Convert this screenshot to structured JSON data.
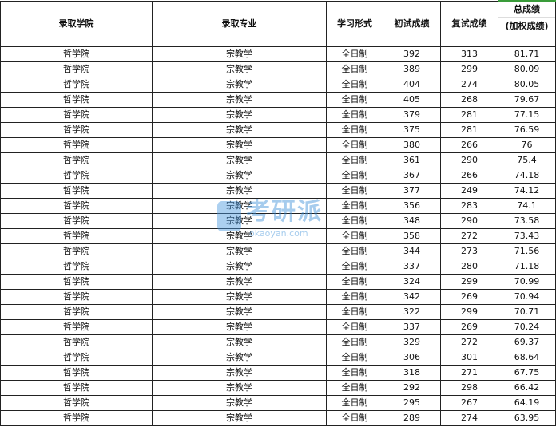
{
  "headers": [
    "录取学院",
    "录取专业",
    "学习形式",
    "初试成绩",
    "复试成绩"
  ],
  "total_header": {
    "line1": "总成绩",
    "line2": "(加权成绩)"
  },
  "watermark": {
    "logo": "考研派",
    "url": "okaoyan.com"
  },
  "rows": [
    [
      "哲学院",
      "宗教学",
      "全日制",
      "392",
      "313",
      "81.71"
    ],
    [
      "哲学院",
      "宗教学",
      "全日制",
      "389",
      "299",
      "80.09"
    ],
    [
      "哲学院",
      "宗教学",
      "全日制",
      "404",
      "274",
      "80.05"
    ],
    [
      "哲学院",
      "宗教学",
      "全日制",
      "405",
      "268",
      "79.67"
    ],
    [
      "哲学院",
      "宗教学",
      "全日制",
      "379",
      "281",
      "77.15"
    ],
    [
      "哲学院",
      "宗教学",
      "全日制",
      "375",
      "281",
      "76.59"
    ],
    [
      "哲学院",
      "宗教学",
      "全日制",
      "380",
      "266",
      "76"
    ],
    [
      "哲学院",
      "宗教学",
      "全日制",
      "361",
      "290",
      "75.4"
    ],
    [
      "哲学院",
      "宗教学",
      "全日制",
      "367",
      "266",
      "74.18"
    ],
    [
      "哲学院",
      "宗教学",
      "全日制",
      "377",
      "249",
      "74.12"
    ],
    [
      "哲学院",
      "宗教学",
      "全日制",
      "356",
      "283",
      "74.1"
    ],
    [
      "哲学院",
      "宗教学",
      "全日制",
      "348",
      "290",
      "73.58"
    ],
    [
      "哲学院",
      "宗教学",
      "全日制",
      "358",
      "272",
      "73.43"
    ],
    [
      "哲学院",
      "宗教学",
      "全日制",
      "344",
      "273",
      "71.56"
    ],
    [
      "哲学院",
      "宗教学",
      "全日制",
      "337",
      "280",
      "71.18"
    ],
    [
      "哲学院",
      "宗教学",
      "全日制",
      "324",
      "299",
      "70.99"
    ],
    [
      "哲学院",
      "宗教学",
      "全日制",
      "342",
      "269",
      "70.94"
    ],
    [
      "哲学院",
      "宗教学",
      "全日制",
      "322",
      "299",
      "70.71"
    ],
    [
      "哲学院",
      "宗教学",
      "全日制",
      "337",
      "269",
      "70.24"
    ],
    [
      "哲学院",
      "宗教学",
      "全日制",
      "329",
      "272",
      "69.37"
    ],
    [
      "哲学院",
      "宗教学",
      "全日制",
      "306",
      "301",
      "68.64"
    ],
    [
      "哲学院",
      "宗教学",
      "全日制",
      "318",
      "271",
      "67.75"
    ],
    [
      "哲学院",
      "宗教学",
      "全日制",
      "292",
      "298",
      "66.42"
    ],
    [
      "哲学院",
      "宗教学",
      "全日制",
      "295",
      "267",
      "64.19"
    ],
    [
      "哲学院",
      "宗教学",
      "全日制",
      "289",
      "274",
      "63.95"
    ]
  ]
}
